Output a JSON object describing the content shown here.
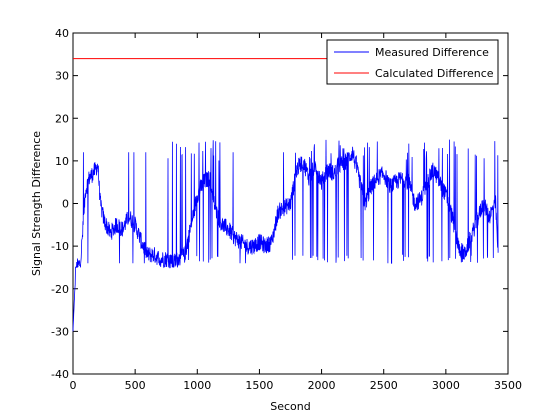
{
  "chart_data": {
    "type": "line",
    "xlabel": "Second",
    "ylabel": "Signal Strength Difference",
    "xlim": [
      0,
      3500
    ],
    "ylim": [
      -40,
      40
    ],
    "x_ticks": [
      "0",
      "500",
      "1000",
      "1500",
      "2000",
      "2500",
      "3000",
      "3500"
    ],
    "y_ticks": [
      "-40",
      "-30",
      "-20",
      "-10",
      "0",
      "10",
      "20",
      "30",
      "40"
    ],
    "grid": false,
    "legend_position": "top-right",
    "series": [
      {
        "name": "Measured Difference",
        "color": "#0000ff",
        "x_range": [
          0,
          3420
        ],
        "points": [
          [
            0,
            -30
          ],
          [
            15,
            -20
          ],
          [
            30,
            -15
          ],
          [
            60,
            -14
          ],
          [
            80,
            -6
          ],
          [
            100,
            3
          ],
          [
            130,
            6
          ],
          [
            160,
            7
          ],
          [
            200,
            9
          ],
          [
            220,
            0
          ],
          [
            250,
            -4
          ],
          [
            300,
            -7
          ],
          [
            350,
            -5
          ],
          [
            400,
            -6
          ],
          [
            450,
            -3
          ],
          [
            500,
            -5
          ],
          [
            550,
            -9
          ],
          [
            600,
            -12
          ],
          [
            650,
            -12
          ],
          [
            700,
            -13
          ],
          [
            750,
            -13
          ],
          [
            800,
            -14
          ],
          [
            850,
            -13
          ],
          [
            900,
            -12
          ],
          [
            950,
            -5
          ],
          [
            1000,
            2
          ],
          [
            1050,
            5
          ],
          [
            1100,
            6
          ],
          [
            1150,
            -2
          ],
          [
            1200,
            -5
          ],
          [
            1250,
            -6
          ],
          [
            1300,
            -8
          ],
          [
            1350,
            -9
          ],
          [
            1400,
            -10
          ],
          [
            1450,
            -10
          ],
          [
            1500,
            -9
          ],
          [
            1550,
            -10
          ],
          [
            1600,
            -9
          ],
          [
            1650,
            -2
          ],
          [
            1700,
            -1
          ],
          [
            1750,
            0
          ],
          [
            1800,
            8
          ],
          [
            1850,
            10
          ],
          [
            1900,
            6
          ],
          [
            1950,
            9
          ],
          [
            2000,
            5
          ],
          [
            2050,
            8
          ],
          [
            2100,
            7
          ],
          [
            2150,
            9
          ],
          [
            2200,
            10
          ],
          [
            2250,
            12
          ],
          [
            2300,
            6
          ],
          [
            2350,
            0
          ],
          [
            2400,
            4
          ],
          [
            2450,
            6
          ],
          [
            2500,
            7
          ],
          [
            2550,
            4
          ],
          [
            2600,
            5
          ],
          [
            2650,
            6
          ],
          [
            2700,
            5
          ],
          [
            2750,
            0
          ],
          [
            2800,
            1
          ],
          [
            2850,
            5
          ],
          [
            2900,
            8
          ],
          [
            2950,
            5
          ],
          [
            3000,
            2
          ],
          [
            3050,
            -3
          ],
          [
            3100,
            -10
          ],
          [
            3150,
            -12
          ],
          [
            3200,
            -8
          ],
          [
            3250,
            -4
          ],
          [
            3300,
            0
          ],
          [
            3350,
            -3
          ],
          [
            3400,
            0
          ],
          [
            3420,
            -12
          ]
        ]
      },
      {
        "name": "Calculated Difference",
        "color": "#ff0000",
        "points": [
          [
            0,
            34
          ],
          [
            3420,
            34
          ]
        ]
      }
    ]
  }
}
